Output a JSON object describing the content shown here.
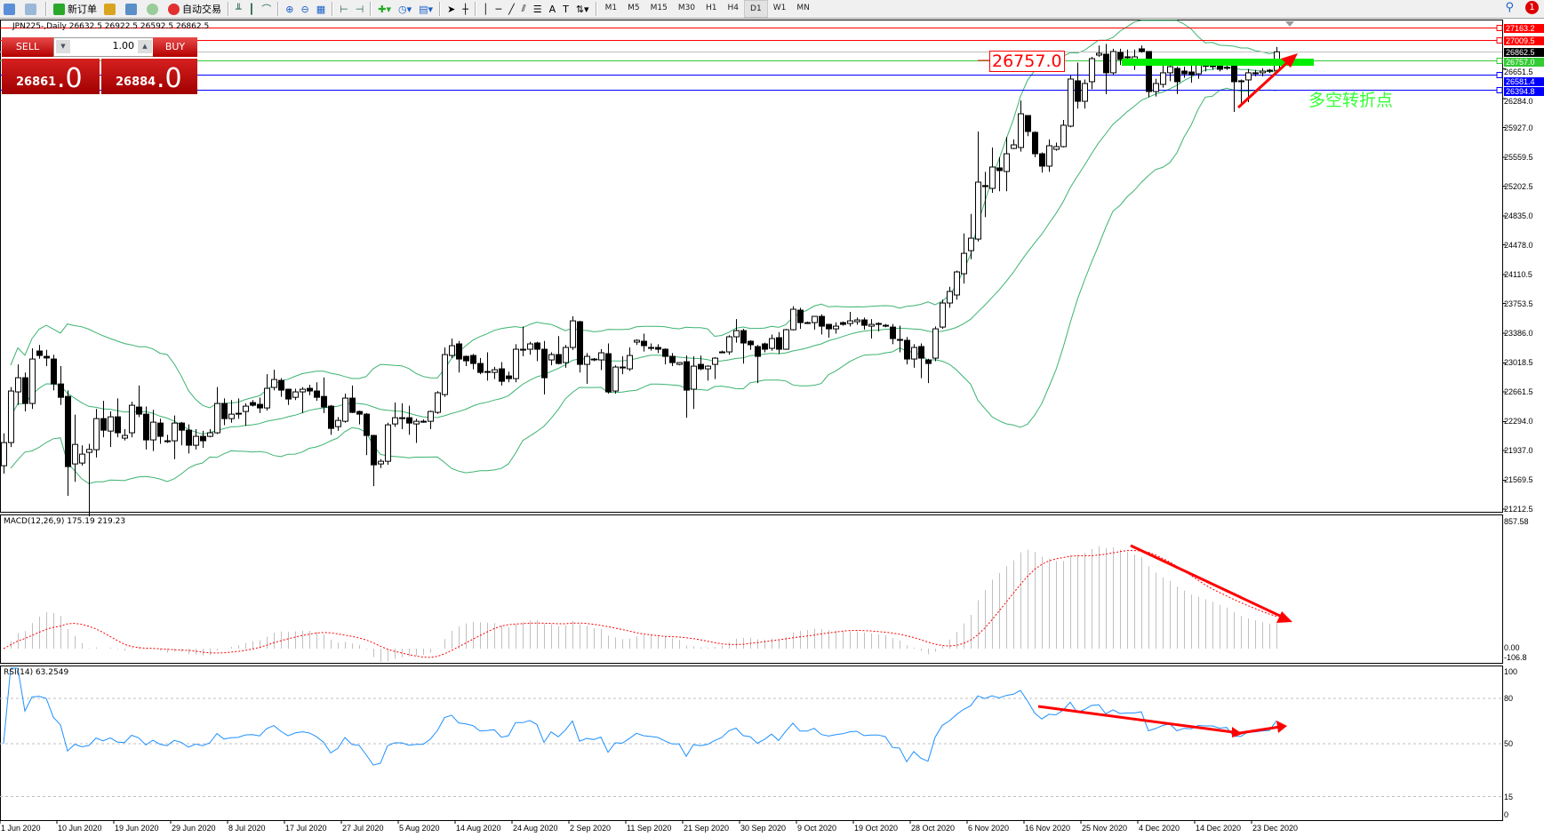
{
  "toolbar": {
    "new_order": "新订单",
    "auto_trade": "自动交易",
    "timeframes": [
      "M1",
      "M5",
      "M15",
      "M30",
      "H1",
      "H4",
      "D1",
      "W1",
      "MN"
    ],
    "selected_timeframe": "D1",
    "notification_count": "1"
  },
  "chart_header": "JPN225-,Daily  26632.5 26922.5 26592.5 26862.5",
  "trade_panel": {
    "sell_label": "SELL",
    "buy_label": "BUY",
    "lot": "1.00",
    "sell_price_main": "26861",
    "sell_price_frac": ".0",
    "buy_price_main": "26884",
    "buy_price_frac": ".0"
  },
  "annotations": {
    "pivot_price": "26757.0",
    "turn_text": "多空转折点"
  },
  "price_lines": [
    {
      "value": 27163.2,
      "label": "27163.2",
      "color": "#ff0000"
    },
    {
      "value": 27009.5,
      "label": "27009.5",
      "color": "#ff0000"
    },
    {
      "value": 26862.5,
      "label": "26862.5",
      "color": "#000000",
      "line": "#c0c0c0"
    },
    {
      "value": 26757.0,
      "label": "26757.0",
      "color": "#33cc33"
    },
    {
      "value": 26581.4,
      "label": "26581.4",
      "color": "#0000ff"
    },
    {
      "value": 26394.8,
      "label": "26394.8",
      "color": "#0000ff"
    }
  ],
  "price_ticks": [
    "26651.5",
    "26284.0",
    "25927.0",
    "25559.5",
    "25202.5",
    "24835.0",
    "24478.0",
    "24110.5",
    "23753.5",
    "23386.0",
    "23018.5",
    "22661.5",
    "22294.0",
    "21937.0",
    "21569.5",
    "21212.5"
  ],
  "macd": {
    "label": "MACD(12,26,9) 175.19 219.23",
    "ticks": [
      "857.58",
      "0.00",
      "-106.8"
    ]
  },
  "rsi": {
    "label": "RSI(14) 63.2549",
    "ticks": [
      "100",
      "80",
      "50",
      "15",
      "0"
    ],
    "levels": [
      80,
      50,
      15
    ]
  },
  "chart_data": {
    "type": "candlestick",
    "symbol": "JPN225-",
    "timeframe": "Daily",
    "x_labels": [
      "1 Jun 2020",
      "10 Jun 2020",
      "19 Jun 2020",
      "29 Jun 2020",
      "8 Jul 2020",
      "17 Jul 2020",
      "27 Jul 2020",
      "5 Aug 2020",
      "14 Aug 2020",
      "24 Aug 2020",
      "2 Sep 2020",
      "11 Sep 2020",
      "21 Sep 2020",
      "30 Sep 2020",
      "9 Oct 2020",
      "19 Oct 2020",
      "28 Oct 2020",
      "6 Nov 2020",
      "16 Nov 2020",
      "25 Nov 2020",
      "4 Dec 2020",
      "14 Dec 2020",
      "23 Dec 2020"
    ],
    "ylim": [
      21212.5,
      27163.2
    ],
    "indicators": [
      "Bollinger Bands(20,2)",
      "MACD(12,26,9)",
      "RSI(14)"
    ],
    "colors": {
      "bull": "#ffffff",
      "bear": "#000000",
      "bands": "#3cb371",
      "macd_hist": "#c0c0c0",
      "macd_signal": "#ff0000",
      "rsi": "#1e90ff"
    },
    "ohlc": [
      [
        21749,
        22150,
        21650,
        22035
      ],
      [
        22035,
        22720,
        21980,
        22672
      ],
      [
        22661,
        23000,
        22500,
        22836
      ],
      [
        22836,
        22900,
        22420,
        22518
      ],
      [
        22518,
        23200,
        22450,
        23067
      ],
      [
        23166,
        23240,
        23070,
        23111
      ],
      [
        23100,
        23180,
        22980,
        23080
      ],
      [
        23067,
        23120,
        22680,
        22759
      ],
      [
        22759,
        22980,
        22500,
        22594
      ],
      [
        22605,
        22680,
        21376,
        21738
      ],
      [
        21771,
        22380,
        21550,
        22012
      ],
      [
        21782,
        22000,
        21750,
        21892
      ],
      [
        21914,
        22020,
        21124,
        21950
      ],
      [
        21947,
        22450,
        21850,
        22331
      ],
      [
        22331,
        22550,
        22100,
        22188
      ],
      [
        22177,
        22420,
        21980,
        22353
      ],
      [
        22353,
        22580,
        22100,
        22156
      ],
      [
        22090,
        22200,
        22060,
        22123
      ],
      [
        22156,
        22540,
        22100,
        22496
      ],
      [
        22474,
        22740,
        22350,
        22386
      ],
      [
        22386,
        22480,
        21950,
        22068
      ],
      [
        22068,
        22440,
        21930,
        22287
      ],
      [
        22276,
        22330,
        22020,
        22112
      ],
      [
        22057,
        22130,
        22030,
        22046
      ],
      [
        22057,
        22370,
        21830,
        22276
      ],
      [
        22276,
        22290,
        22000,
        22188
      ],
      [
        22188,
        22260,
        21900,
        22002
      ],
      [
        22002,
        22200,
        21950,
        22112
      ],
      [
        22112,
        22180,
        21970,
        22057
      ],
      [
        22112,
        22200,
        22100,
        22156
      ],
      [
        22156,
        22720,
        22140,
        22518
      ],
      [
        22518,
        22580,
        22250,
        22331
      ],
      [
        22331,
        22560,
        22280,
        22386
      ],
      [
        22397,
        22580,
        22330,
        22397
      ],
      [
        22419,
        22520,
        22240,
        22485
      ],
      [
        22529,
        22560,
        22480,
        22496
      ],
      [
        22507,
        22590,
        22400,
        22463
      ],
      [
        22463,
        22880,
        22430,
        22705
      ],
      [
        22716,
        22935,
        22680,
        22814
      ],
      [
        22803,
        22830,
        22600,
        22683
      ],
      [
        22694,
        22700,
        22500,
        22573
      ],
      [
        22594,
        22700,
        22560,
        22661
      ],
      [
        22661,
        22720,
        22400,
        22694
      ],
      [
        22705,
        22750,
        22620,
        22672
      ],
      [
        22672,
        22780,
        22550,
        22594
      ],
      [
        22605,
        22840,
        22400,
        22474
      ],
      [
        22485,
        22500,
        22130,
        22210
      ],
      [
        22232,
        22350,
        22180,
        22309
      ],
      [
        22298,
        22640,
        22280,
        22584
      ],
      [
        22584,
        22740,
        22400,
        22408
      ],
      [
        22419,
        22430,
        22260,
        22386
      ],
      [
        22386,
        22400,
        21880,
        22123
      ],
      [
        22123,
        22130,
        21497,
        21760
      ],
      [
        21771,
        21830,
        21720,
        21804
      ],
      [
        21804,
        22280,
        21760,
        22254
      ],
      [
        22265,
        22530,
        22230,
        22342
      ],
      [
        22342,
        22520,
        22200,
        22342
      ],
      [
        22342,
        22490,
        22130,
        22276
      ],
      [
        22265,
        22330,
        22030,
        22298
      ],
      [
        22298,
        22320,
        22280,
        22298
      ],
      [
        22298,
        22430,
        22200,
        22419
      ],
      [
        22408,
        22670,
        22390,
        22650
      ],
      [
        22628,
        23210,
        22600,
        23122
      ],
      [
        23111,
        23320,
        23080,
        23232
      ],
      [
        23254,
        23290,
        22900,
        23067
      ],
      [
        23100,
        23110,
        22980,
        23045
      ],
      [
        23111,
        23130,
        22940,
        23012
      ],
      [
        23012,
        23080,
        22880,
        22902
      ],
      [
        22913,
        23150,
        22800,
        22913
      ],
      [
        22902,
        22970,
        22820,
        22935
      ],
      [
        22946,
        23030,
        22740,
        22792
      ],
      [
        22858,
        22910,
        22780,
        22825
      ],
      [
        22825,
        23250,
        22780,
        23188
      ],
      [
        23188,
        23470,
        23100,
        23188
      ],
      [
        23188,
        23280,
        23120,
        23254
      ],
      [
        23265,
        23280,
        23040,
        23188
      ],
      [
        23188,
        23290,
        22630,
        22836
      ],
      [
        23056,
        23150,
        22990,
        23122
      ],
      [
        23122,
        23350,
        23000,
        23012
      ],
      [
        23023,
        23240,
        22960,
        23210
      ],
      [
        23210,
        23594,
        23180,
        23539
      ],
      [
        23528,
        23540,
        22900,
        23001
      ],
      [
        23001,
        23140,
        22760,
        23100
      ],
      [
        23067,
        23080,
        23040,
        23067
      ],
      [
        23056,
        23190,
        22930,
        23144
      ],
      [
        23133,
        23260,
        22640,
        22661
      ],
      [
        22672,
        22990,
        22640,
        22968
      ],
      [
        22968,
        23100,
        22880,
        22957
      ],
      [
        22946,
        23210,
        22920,
        23111
      ],
      [
        23276,
        23310,
        23240,
        23298
      ],
      [
        23287,
        23380,
        23160,
        23232
      ],
      [
        23210,
        23260,
        23170,
        23210
      ],
      [
        23210,
        23250,
        23140,
        23188
      ],
      [
        23188,
        23200,
        23000,
        23100
      ],
      [
        23100,
        23140,
        22980,
        23023
      ],
      [
        23001,
        23030,
        22990,
        23023
      ],
      [
        23034,
        23110,
        22342,
        22683
      ],
      [
        22694,
        23100,
        22450,
        22979
      ],
      [
        23001,
        23110,
        22930,
        22946
      ],
      [
        22946,
        22990,
        22800,
        22979
      ],
      [
        23001,
        23090,
        22820,
        23078
      ],
      [
        23155,
        23170,
        23140,
        23155
      ],
      [
        23155,
        23360,
        23120,
        23342
      ],
      [
        23342,
        23560,
        23270,
        23418
      ],
      [
        23418,
        23440,
        23010,
        23265
      ],
      [
        23287,
        23300,
        23180,
        23243
      ],
      [
        23221,
        23240,
        22770,
        23100
      ],
      [
        23254,
        23270,
        23150,
        23188
      ],
      [
        23199,
        23370,
        23170,
        23320
      ],
      [
        23331,
        23400,
        23130,
        23188
      ],
      [
        23188,
        23440,
        23180,
        23429
      ],
      [
        23429,
        23720,
        23420,
        23682
      ],
      [
        23671,
        23700,
        23440,
        23517
      ],
      [
        23517,
        23530,
        23500,
        23517
      ],
      [
        23517,
        23600,
        23430,
        23594
      ],
      [
        23594,
        23620,
        23370,
        23473
      ],
      [
        23495,
        23500,
        23330,
        23440
      ],
      [
        23440,
        23520,
        23380,
        23473
      ],
      [
        23517,
        23530,
        23480,
        23495
      ],
      [
        23506,
        23650,
        23470,
        23539
      ],
      [
        23528,
        23580,
        23490,
        23550
      ],
      [
        23550,
        23580,
        23430,
        23484
      ],
      [
        23473,
        23560,
        23320,
        23495
      ],
      [
        23506,
        23520,
        23410,
        23495
      ],
      [
        23484,
        23500,
        23460,
        23473
      ],
      [
        23462,
        23500,
        23250,
        23320
      ],
      [
        23309,
        23480,
        23150,
        23309
      ],
      [
        23298,
        23340,
        23000,
        23067
      ],
      [
        23067,
        23250,
        22960,
        23210
      ],
      [
        23221,
        23260,
        22830,
        23078
      ],
      [
        23056,
        23070,
        22770,
        23012
      ],
      [
        23078,
        23470,
        23040,
        23440
      ],
      [
        23462,
        23800,
        23440,
        23759
      ],
      [
        23759,
        23960,
        23700,
        23902
      ],
      [
        23858,
        24160,
        23800,
        24143
      ],
      [
        24121,
        24620,
        24000,
        24373
      ],
      [
        24406,
        24860,
        24300,
        24560
      ],
      [
        24549,
        25878,
        24520,
        25252
      ],
      [
        25210,
        25380,
        24820,
        25197
      ],
      [
        25175,
        25680,
        25120,
        25439
      ],
      [
        25428,
        25560,
        25140,
        25395
      ],
      [
        25384,
        25810,
        25140,
        25603
      ],
      [
        25669,
        25780,
        25660,
        25713
      ],
      [
        25680,
        26260,
        25630,
        26097
      ],
      [
        26075,
        26080,
        25820,
        25878
      ],
      [
        25867,
        25880,
        25560,
        25603
      ],
      [
        25603,
        25620,
        25370,
        25450
      ],
      [
        25450,
        25780,
        25380,
        25702
      ],
      [
        25658,
        25740,
        25640,
        25691
      ],
      [
        25691,
        26020,
        25680,
        25955
      ],
      [
        25944,
        26570,
        25930,
        26526
      ],
      [
        26504,
        26730,
        26160,
        26251
      ],
      [
        26251,
        26520,
        26160,
        26471
      ],
      [
        26493,
        26800,
        26400,
        26778
      ],
      [
        26822,
        26940,
        26800,
        26844
      ],
      [
        26833,
        26960,
        26339,
        26603
      ],
      [
        26603,
        26900,
        26580,
        26866
      ],
      [
        26855,
        26900,
        26700,
        26767
      ],
      [
        26790,
        26890,
        26700,
        26800
      ],
      [
        26767,
        26890,
        26640,
        26800
      ],
      [
        26899,
        26940,
        26850,
        26866
      ],
      [
        26866,
        26870,
        26300,
        26372
      ],
      [
        26372,
        26530,
        26310,
        26471
      ],
      [
        26460,
        26700,
        26420,
        26603
      ],
      [
        26603,
        26690,
        26500,
        26679
      ],
      [
        26657,
        26680,
        26340,
        26493
      ],
      [
        26624,
        26680,
        26540,
        26591
      ],
      [
        26613,
        26700,
        26480,
        26580
      ],
      [
        26591,
        26760,
        26530,
        26701
      ],
      [
        26695,
        26740,
        26620,
        26690
      ],
      [
        26685,
        26740,
        26640,
        26690
      ],
      [
        26690,
        26720,
        26620,
        26646
      ],
      [
        26670,
        26690,
        26640,
        26668
      ],
      [
        26701,
        26720,
        26120,
        26493
      ],
      [
        26504,
        26520,
        26230,
        26493
      ],
      [
        26515,
        26650,
        26240,
        26603
      ],
      [
        26603,
        26640,
        26560,
        26603
      ],
      [
        26603,
        26660,
        26560,
        26624
      ],
      [
        26624,
        26650,
        26600,
        26635
      ],
      [
        26632.5,
        26922.5,
        26592.5,
        26862.5
      ]
    ]
  }
}
